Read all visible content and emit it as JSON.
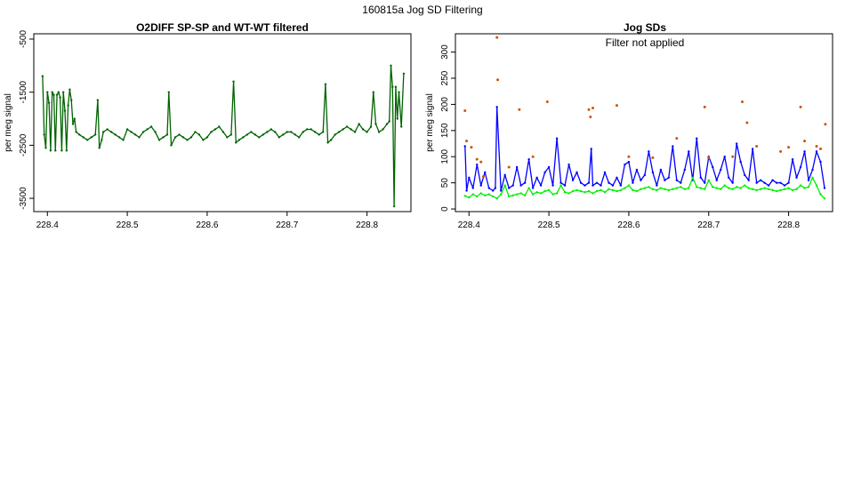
{
  "page_title": "160815a   Jog SD Filtering",
  "chart_data": [
    {
      "type": "line",
      "title": "O2DIFF SP-SP and WT-WT filtered",
      "xlabel": "",
      "ylabel": "per meg signal",
      "xlim": [
        228.383,
        228.855
      ],
      "ylim": [
        -3750,
        -400
      ],
      "x_ticks": [
        228.4,
        228.5,
        228.6,
        228.7,
        228.8
      ],
      "x_tick_labels": [
        "228.4",
        "228.5",
        "228.6",
        "228.7",
        "228.8"
      ],
      "y_ticks": [
        -500,
        -1500,
        -2500,
        -3500
      ],
      "y_tick_labels": [
        "-500",
        "-1500",
        "-2500",
        "-3500"
      ],
      "y_tick_labels_rotated": true,
      "grid": false,
      "legend": "none",
      "series": [
        {
          "color": "#006400",
          "x": [
            228.394,
            228.396,
            228.398,
            228.4,
            228.402,
            228.404,
            228.406,
            228.408,
            228.41,
            228.412,
            228.414,
            228.416,
            228.418,
            228.42,
            228.422,
            228.424,
            228.426,
            228.428,
            228.43,
            228.432,
            228.434,
            228.436,
            228.44,
            228.445,
            228.45,
            228.455,
            228.46,
            228.463,
            228.465,
            228.468,
            228.47,
            228.475,
            228.48,
            228.485,
            228.49,
            228.495,
            228.5,
            228.505,
            228.51,
            228.515,
            228.52,
            228.525,
            228.53,
            228.535,
            228.54,
            228.545,
            228.55,
            228.552,
            228.555,
            228.56,
            228.565,
            228.57,
            228.575,
            228.58,
            228.585,
            228.59,
            228.595,
            228.6,
            228.605,
            228.61,
            228.615,
            228.62,
            228.625,
            228.63,
            228.633,
            228.636,
            228.64,
            228.645,
            228.65,
            228.655,
            228.66,
            228.665,
            228.67,
            228.675,
            228.68,
            228.685,
            228.69,
            228.695,
            228.7,
            228.705,
            228.71,
            228.715,
            228.72,
            228.725,
            228.73,
            228.735,
            228.74,
            228.745,
            228.748,
            228.751,
            228.755,
            228.76,
            228.765,
            228.77,
            228.775,
            228.78,
            228.785,
            228.79,
            228.795,
            228.8,
            228.805,
            228.808,
            228.811,
            228.815,
            228.82,
            228.825,
            228.828,
            228.83,
            228.832,
            228.834,
            228.836,
            228.838,
            228.84,
            228.843,
            228.846
          ],
          "y": [
            -1200,
            -2300,
            -2550,
            -1500,
            -1700,
            -2600,
            -1500,
            -1550,
            -2600,
            -1550,
            -1500,
            -1600,
            -2600,
            -1500,
            -1850,
            -2600,
            -1750,
            -1450,
            -1650,
            -2100,
            -2000,
            -2250,
            -2300,
            -2350,
            -2400,
            -2350,
            -2300,
            -1650,
            -2550,
            -2400,
            -2250,
            -2200,
            -2250,
            -2300,
            -2350,
            -2400,
            -2200,
            -2250,
            -2300,
            -2350,
            -2250,
            -2200,
            -2150,
            -2250,
            -2400,
            -2350,
            -2300,
            -1500,
            -2500,
            -2350,
            -2300,
            -2350,
            -2400,
            -2350,
            -2250,
            -2300,
            -2400,
            -2350,
            -2250,
            -2200,
            -2150,
            -2250,
            -2350,
            -2300,
            -1300,
            -2450,
            -2400,
            -2350,
            -2300,
            -2250,
            -2300,
            -2350,
            -2300,
            -2250,
            -2200,
            -2250,
            -2350,
            -2300,
            -2250,
            -2250,
            -2300,
            -2350,
            -2250,
            -2200,
            -2200,
            -2250,
            -2300,
            -2250,
            -1350,
            -2450,
            -2400,
            -2300,
            -2250,
            -2200,
            -2150,
            -2200,
            -2250,
            -2100,
            -2200,
            -2250,
            -2150,
            -1500,
            -2100,
            -2250,
            -2200,
            -2100,
            -2050,
            -1000,
            -1400,
            -3650,
            -1400,
            -2000,
            -1500,
            -2150,
            -1150
          ]
        }
      ]
    },
    {
      "type": "line",
      "title": "Jog SDs",
      "annotation": "Filter not applied",
      "xlabel": "",
      "ylabel": "per meg signal",
      "xlim": [
        228.383,
        228.855
      ],
      "ylim": [
        -5,
        335
      ],
      "x_ticks": [
        228.4,
        228.5,
        228.6,
        228.7,
        228.8
      ],
      "x_tick_labels": [
        "228.4",
        "228.5",
        "228.6",
        "228.7",
        "228.8"
      ],
      "y_ticks": [
        0,
        50,
        100,
        150,
        200,
        250,
        300
      ],
      "y_tick_labels": [
        "0",
        "50",
        "100",
        "150",
        "200",
        "250",
        "300"
      ],
      "y_tick_labels_rotated": true,
      "grid": false,
      "legend": "none",
      "series": [
        {
          "color": "#0000ff",
          "x": [
            228.395,
            228.397,
            228.4,
            228.405,
            228.41,
            228.415,
            228.42,
            228.425,
            228.43,
            228.433,
            228.435,
            228.44,
            228.445,
            228.45,
            228.455,
            228.46,
            228.465,
            228.47,
            228.475,
            228.48,
            228.485,
            228.49,
            228.495,
            228.5,
            228.505,
            228.51,
            228.515,
            228.52,
            228.525,
            228.53,
            228.535,
            228.54,
            228.545,
            228.55,
            228.553,
            228.555,
            228.56,
            228.565,
            228.57,
            228.575,
            228.58,
            228.585,
            228.59,
            228.595,
            228.6,
            228.605,
            228.61,
            228.615,
            228.62,
            228.625,
            228.63,
            228.635,
            228.64,
            228.645,
            228.65,
            228.655,
            228.66,
            228.665,
            228.67,
            228.675,
            228.68,
            228.685,
            228.69,
            228.695,
            228.7,
            228.705,
            228.71,
            228.715,
            228.72,
            228.725,
            228.73,
            228.735,
            228.74,
            228.745,
            228.75,
            228.755,
            228.76,
            228.765,
            228.77,
            228.775,
            228.78,
            228.785,
            228.79,
            228.795,
            228.8,
            228.805,
            228.81,
            228.815,
            228.82,
            228.825,
            228.83,
            228.835,
            228.84,
            228.845
          ],
          "y": [
            120,
            35,
            60,
            40,
            85,
            45,
            70,
            40,
            35,
            40,
            195,
            35,
            65,
            40,
            45,
            80,
            45,
            50,
            95,
            40,
            60,
            45,
            70,
            80,
            45,
            135,
            50,
            45,
            85,
            55,
            70,
            50,
            45,
            50,
            115,
            45,
            50,
            45,
            70,
            50,
            45,
            60,
            45,
            85,
            90,
            50,
            75,
            55,
            65,
            110,
            70,
            45,
            75,
            55,
            60,
            120,
            55,
            50,
            75,
            110,
            55,
            135,
            60,
            50,
            100,
            80,
            55,
            75,
            100,
            60,
            50,
            125,
            90,
            65,
            55,
            115,
            50,
            55,
            50,
            45,
            55,
            50,
            50,
            45,
            50,
            95,
            60,
            80,
            110,
            55,
            75,
            110,
            90,
            40
          ]
        },
        {
          "color": "#00ee00",
          "x": [
            228.395,
            228.4,
            228.405,
            228.41,
            228.415,
            228.42,
            228.425,
            228.43,
            228.435,
            228.44,
            228.445,
            228.45,
            228.455,
            228.46,
            228.465,
            228.47,
            228.475,
            228.48,
            228.485,
            228.49,
            228.495,
            228.5,
            228.505,
            228.51,
            228.515,
            228.52,
            228.525,
            228.53,
            228.535,
            228.54,
            228.545,
            228.55,
            228.555,
            228.56,
            228.565,
            228.57,
            228.575,
            228.58,
            228.585,
            228.59,
            228.595,
            228.6,
            228.605,
            228.61,
            228.615,
            228.62,
            228.625,
            228.63,
            228.635,
            228.64,
            228.645,
            228.65,
            228.655,
            228.66,
            228.665,
            228.67,
            228.675,
            228.68,
            228.685,
            228.69,
            228.695,
            228.7,
            228.705,
            228.71,
            228.715,
            228.72,
            228.725,
            228.73,
            228.735,
            228.74,
            228.745,
            228.75,
            228.755,
            228.76,
            228.765,
            228.77,
            228.775,
            228.78,
            228.785,
            228.79,
            228.795,
            228.8,
            228.805,
            228.81,
            228.815,
            228.82,
            228.825,
            228.83,
            228.835,
            228.84,
            228.845
          ],
          "y": [
            25,
            22,
            28,
            24,
            30,
            26,
            28,
            24,
            20,
            28,
            45,
            24,
            26,
            28,
            30,
            26,
            40,
            28,
            32,
            30,
            34,
            36,
            28,
            30,
            45,
            32,
            30,
            34,
            36,
            34,
            32,
            34,
            30,
            34,
            36,
            32,
            38,
            36,
            34,
            36,
            40,
            45,
            36,
            34,
            38,
            40,
            42,
            38,
            36,
            40,
            38,
            36,
            38,
            40,
            42,
            38,
            40,
            60,
            42,
            40,
            38,
            55,
            42,
            40,
            38,
            45,
            40,
            38,
            42,
            40,
            45,
            40,
            38,
            36,
            38,
            40,
            38,
            36,
            34,
            36,
            38,
            40,
            36,
            38,
            45,
            40,
            42,
            60,
            45,
            28,
            20
          ]
        },
        {
          "type": "scatter",
          "color": "#cc5500",
          "x": [
            228.395,
            228.397,
            228.403,
            228.41,
            228.415,
            228.418,
            228.435,
            228.436,
            228.45,
            228.463,
            228.48,
            228.498,
            228.55,
            228.552,
            228.555,
            228.585,
            228.6,
            228.63,
            228.66,
            228.695,
            228.7,
            228.73,
            228.742,
            228.748,
            228.76,
            228.79,
            228.8,
            228.815,
            228.82,
            228.835,
            228.84,
            228.846
          ],
          "y": [
            188,
            130,
            118,
            95,
            90,
            62,
            328,
            247,
            80,
            190,
            100,
            205,
            190,
            176,
            193,
            198,
            100,
            98,
            135,
            195,
            98,
            100,
            205,
            165,
            120,
            110,
            118,
            195,
            130,
            120,
            115,
            162
          ]
        }
      ]
    }
  ]
}
